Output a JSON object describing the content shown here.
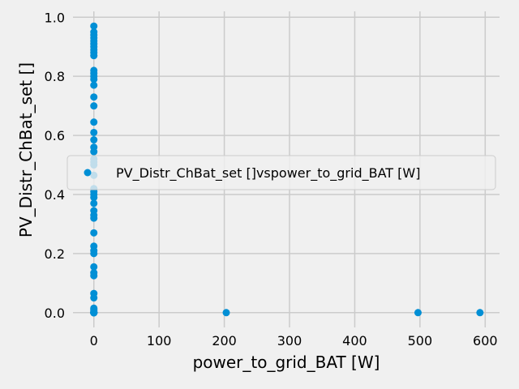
{
  "chart_data": {
    "type": "scatter",
    "xlabel": "power_to_grid_BAT [W]",
    "ylabel": "PV_Distr_ChBat_set []",
    "xlim": [
      -32,
      622
    ],
    "ylim": [
      -0.05,
      1.02
    ],
    "xticks": [
      0,
      100,
      200,
      300,
      400,
      500,
      600
    ],
    "xtick_labels": [
      "0",
      "100",
      "200",
      "300",
      "400",
      "500",
      "600"
    ],
    "yticks": [
      0.0,
      0.2,
      0.4,
      0.6,
      0.8,
      1.0
    ],
    "ytick_labels": [
      "0.0",
      "0.2",
      "0.4",
      "0.6",
      "0.8",
      "1.0"
    ],
    "grid": true,
    "legend_position": "center-right",
    "marker_color": "#008fd5",
    "background_color": "#f0f0f0",
    "grid_color": "#cbcbcb",
    "series": [
      {
        "name": "PV_Distr_ChBat_set []vspower_to_grid_BAT [W]",
        "x": [
          0,
          0,
          0,
          0,
          0,
          0,
          0,
          0,
          0,
          0,
          0,
          0,
          0,
          0,
          0,
          0,
          0,
          0,
          0,
          0,
          0,
          0,
          0,
          0,
          0,
          0,
          0,
          0,
          0,
          0,
          0,
          0,
          0,
          0,
          0,
          0,
          0,
          0,
          0,
          0,
          0,
          0,
          0,
          0,
          0,
          0,
          0,
          0,
          0,
          0,
          0,
          0,
          0,
          0,
          0,
          0,
          0,
          0,
          0,
          0,
          0,
          0,
          0,
          0,
          203,
          497,
          592
        ],
        "y": [
          0.97,
          0.95,
          0.94,
          0.93,
          0.92,
          0.91,
          0.9,
          0.89,
          0.88,
          0.87,
          0.82,
          0.81,
          0.8,
          0.79,
          0.77,
          0.73,
          0.7,
          0.645,
          0.61,
          0.585,
          0.56,
          0.545,
          0.52,
          0.51,
          0.5,
          0.465,
          0.42,
          0.41,
          0.4,
          0.39,
          0.37,
          0.345,
          0.33,
          0.32,
          0.27,
          0.225,
          0.21,
          0.2,
          0.155,
          0.135,
          0.125,
          0.065,
          0.05,
          0.015,
          0.01,
          0.005,
          0.0,
          0.0,
          0.0,
          0.0,
          0.0,
          0.0,
          0.0,
          0.0,
          0.0,
          0.0,
          0.0,
          0.0,
          0.0,
          0.0,
          0.0,
          0.0,
          0.0,
          0.0,
          0.0,
          0.0,
          0.0
        ]
      }
    ]
  }
}
